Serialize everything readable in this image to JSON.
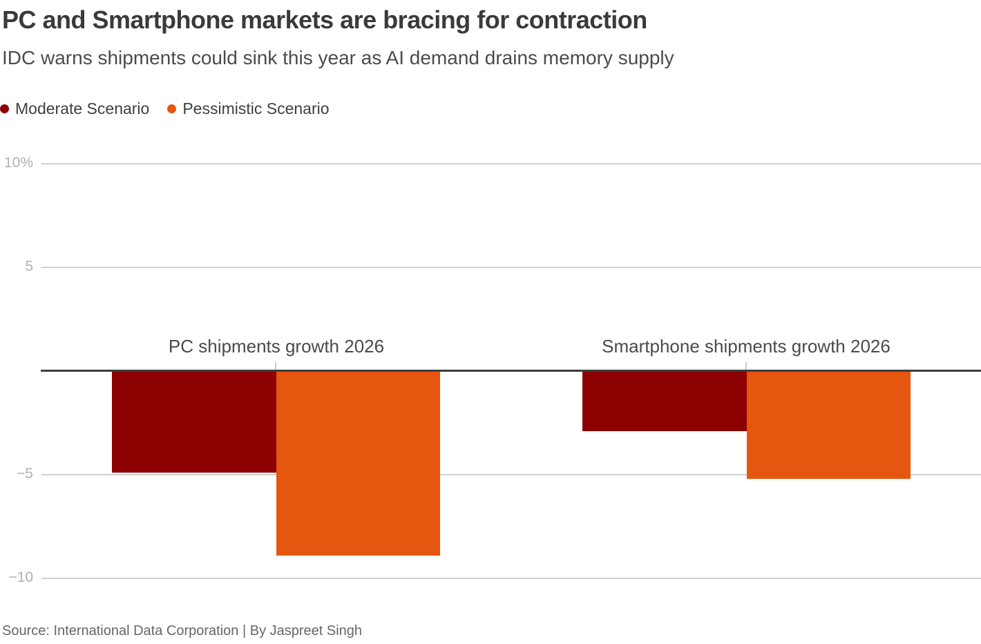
{
  "header": {
    "title": "PC and Smartphone markets are bracing for contraction",
    "subtitle": "IDC warns shipments could sink this year as AI demand drains memory supply"
  },
  "legend": [
    {
      "label": "Moderate Scenario",
      "color": "#8d0000"
    },
    {
      "label": "Pessimistic Scenario",
      "color": "#e5560e"
    }
  ],
  "chart_data": {
    "type": "bar",
    "categories": [
      "PC shipments growth 2026",
      "Smartphone shipments growth 2026"
    ],
    "series": [
      {
        "name": "Moderate Scenario",
        "color": "#8d0000",
        "values": [
          -4.9,
          -2.9
        ]
      },
      {
        "name": "Pessimistic Scenario",
        "color": "#e5560e",
        "values": [
          -8.9,
          -5.2
        ]
      }
    ],
    "unit": "%",
    "ylim": [
      -10,
      10
    ],
    "yticks": [
      {
        "value": 10,
        "label": "10%"
      },
      {
        "value": 5,
        "label": "5"
      },
      {
        "value": -5,
        "label": "−5"
      },
      {
        "value": -10,
        "label": "−10"
      }
    ],
    "grid": true,
    "zero_baseline": true,
    "legend_position": "top-left"
  },
  "source": "Source: International Data Corporation | By Jaspreet Singh"
}
